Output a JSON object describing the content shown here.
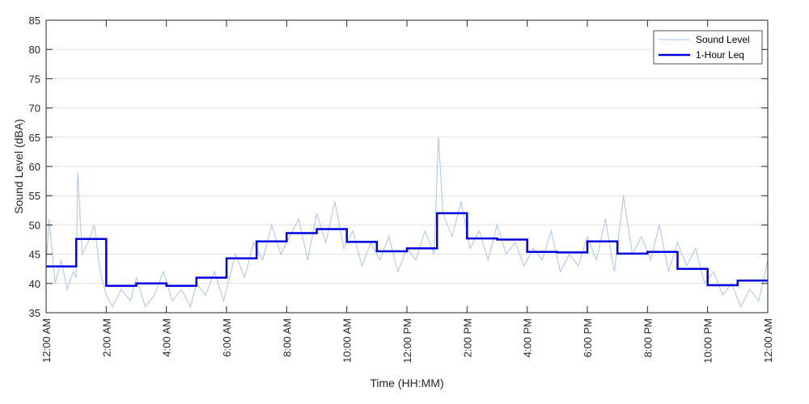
{
  "chart_data": {
    "type": "line",
    "xlabel": "Time (HH:MM)",
    "ylabel": "Sound Level (dBA)",
    "xlim": [
      0,
      24
    ],
    "ylim": [
      35,
      85
    ],
    "y_ticks": [
      "35",
      "40",
      "45",
      "50",
      "55",
      "60",
      "65",
      "70",
      "75",
      "80",
      "85"
    ],
    "x_ticks": [
      {
        "hour": 0,
        "label": "12:00 AM"
      },
      {
        "hour": 2,
        "label": "2:00 AM"
      },
      {
        "hour": 4,
        "label": "4:00 AM"
      },
      {
        "hour": 6,
        "label": "6:00 AM"
      },
      {
        "hour": 8,
        "label": "8:00 AM"
      },
      {
        "hour": 10,
        "label": "10:00 AM"
      },
      {
        "hour": 12,
        "label": "12:00 PM"
      },
      {
        "hour": 14,
        "label": "2:00 PM"
      },
      {
        "hour": 16,
        "label": "4:00 PM"
      },
      {
        "hour": 18,
        "label": "6:00 PM"
      },
      {
        "hour": 20,
        "label": "8:00 PM"
      },
      {
        "hour": 22,
        "label": "10:00 PM"
      },
      {
        "hour": 24,
        "label": "12:00 AM"
      }
    ],
    "grid": "horizontal",
    "legend_position": "top-right",
    "series": [
      {
        "name": "Sound Level",
        "color": "#a8c4f2",
        "x": [
          0,
          0.1,
          0.3,
          0.5,
          0.7,
          0.9,
          1.0,
          1.05,
          1.2,
          1.4,
          1.6,
          1.8,
          2.0,
          2.2,
          2.5,
          2.8,
          3.0,
          3.3,
          3.6,
          3.9,
          4.2,
          4.5,
          4.8,
          5.0,
          5.3,
          5.6,
          5.9,
          6.0,
          6.3,
          6.6,
          6.9,
          7.2,
          7.5,
          7.8,
          8.1,
          8.4,
          8.7,
          9.0,
          9.3,
          9.6,
          9.9,
          10.2,
          10.5,
          10.8,
          11.1,
          11.4,
          11.7,
          12.0,
          12.3,
          12.6,
          12.9,
          13.05,
          13.2,
          13.5,
          13.8,
          14.1,
          14.4,
          14.7,
          15.0,
          15.3,
          15.6,
          15.9,
          16.2,
          16.5,
          16.8,
          17.1,
          17.4,
          17.7,
          18.0,
          18.3,
          18.6,
          18.9,
          19.2,
          19.5,
          19.8,
          20.1,
          20.4,
          20.7,
          21.0,
          21.3,
          21.6,
          21.9,
          22.2,
          22.5,
          22.8,
          23.1,
          23.4,
          23.7,
          24.0
        ],
        "y": [
          43,
          51,
          40,
          44,
          39,
          42,
          41,
          59,
          45,
          47,
          50,
          42,
          38,
          36,
          39,
          37,
          41,
          36,
          38,
          42,
          37,
          39,
          36,
          40,
          38,
          42,
          37,
          39,
          45,
          41,
          47,
          44,
          50,
          45,
          48,
          51,
          44,
          52,
          47,
          54,
          46,
          49,
          43,
          47,
          44,
          48,
          42,
          46,
          44,
          49,
          45,
          65,
          52,
          48,
          54,
          46,
          49,
          44,
          50,
          45,
          47,
          43,
          46,
          44,
          49,
          42,
          45,
          43,
          48,
          44,
          51,
          42,
          55,
          45,
          48,
          44,
          50,
          42,
          47,
          43,
          46,
          40,
          42,
          38,
          40,
          36,
          39,
          37,
          44
        ]
      },
      {
        "name": "1-Hour Leq",
        "color": "#0000e0",
        "x": [
          0,
          1,
          2,
          3,
          4,
          5,
          6,
          7,
          8,
          9,
          10,
          11,
          12,
          13,
          14,
          15,
          16,
          17,
          18,
          19,
          20,
          21,
          22,
          23
        ],
        "y": [
          42.9,
          47.6,
          39.6,
          40.0,
          39.6,
          41.0,
          44.3,
          47.2,
          48.6,
          49.3,
          47.1,
          45.5,
          46.0,
          52.0,
          47.7,
          47.5,
          45.4,
          45.3,
          47.2,
          45.1,
          45.4,
          42.5,
          39.7,
          40.5
        ]
      }
    ]
  }
}
